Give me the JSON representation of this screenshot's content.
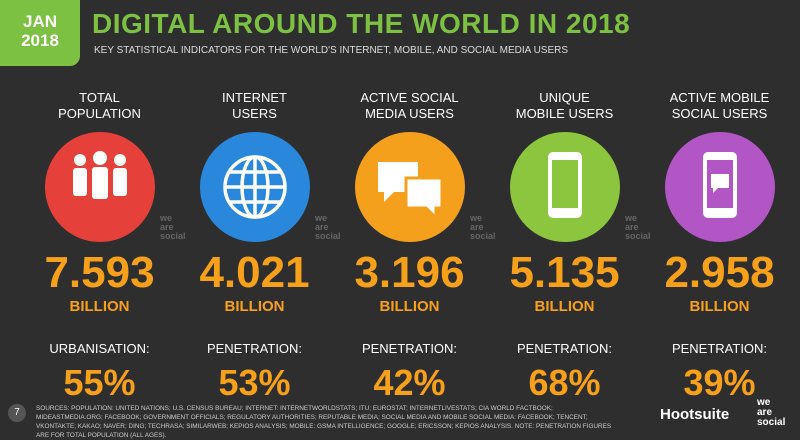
{
  "header": {
    "badge": [
      "JAN",
      "2018"
    ],
    "title": "DIGITAL AROUND THE WORLD IN 2018",
    "subtitle": "KEY STATISTICAL INDICATORS FOR THE WORLD'S INTERNET, MOBILE, AND SOCIAL MEDIA USERS"
  },
  "watermark": [
    "we",
    "are",
    "social"
  ],
  "columns": [
    {
      "label": [
        "TOTAL",
        "POPULATION"
      ],
      "value": "7.593",
      "unit": "BILLION",
      "sub_label": "URBANISATION:",
      "sub_value": "55%",
      "color": "#e5413a"
    },
    {
      "label": [
        "INTERNET",
        "USERS"
      ],
      "value": "4.021",
      "unit": "BILLION",
      "sub_label": "PENETRATION:",
      "sub_value": "53%",
      "color": "#2a88dc"
    },
    {
      "label": [
        "ACTIVE SOCIAL",
        "MEDIA USERS"
      ],
      "value": "3.196",
      "unit": "BILLION",
      "sub_label": "PENETRATION:",
      "sub_value": "42%",
      "color": "#f4a01c"
    },
    {
      "label": [
        "UNIQUE",
        "MOBILE USERS"
      ],
      "value": "5.135",
      "unit": "BILLION",
      "sub_label": "PENETRATION:",
      "sub_value": "68%",
      "color": "#8cc63e"
    },
    {
      "label": [
        "ACTIVE MOBILE",
        "SOCIAL USERS"
      ],
      "value": "2.958",
      "unit": "BILLION",
      "sub_label": "PENETRATION:",
      "sub_value": "39%",
      "color": "#b256c6"
    }
  ],
  "footer": {
    "page": "7",
    "sources": "SOURCES: POPULATION: UNITED NATIONS; U.S. CENSUS BUREAU; INTERNET: INTERNETWORLDSTATS; ITU; EUROSTAT; INTERNETLIVESTATS; CIA WORLD FACTBOOK; MIDEASTMEDIA.ORG; FACEBOOK; GOVERNMENT OFFICIALS; REGULATORY AUTHORITIES; REPUTABLE MEDIA; SOCIAL MEDIA AND MOBILE SOCIAL MEDIA: FACEBOOK; TENCENT; VKONTAKTE; KAKAO; NAVER; DING; TECHRASA; SIMILARWEB; KEPIOS ANALYSIS; MOBILE: GSMA INTELLIGENCE; GOOGLE; ERICSSON; KEPIOS ANALYSIS. NOTE: PENETRATION FIGURES ARE FOR TOTAL POPULATION (ALL AGES).",
    "brand": "Hootsuite",
    "partner": [
      "we",
      "are",
      "social"
    ]
  }
}
